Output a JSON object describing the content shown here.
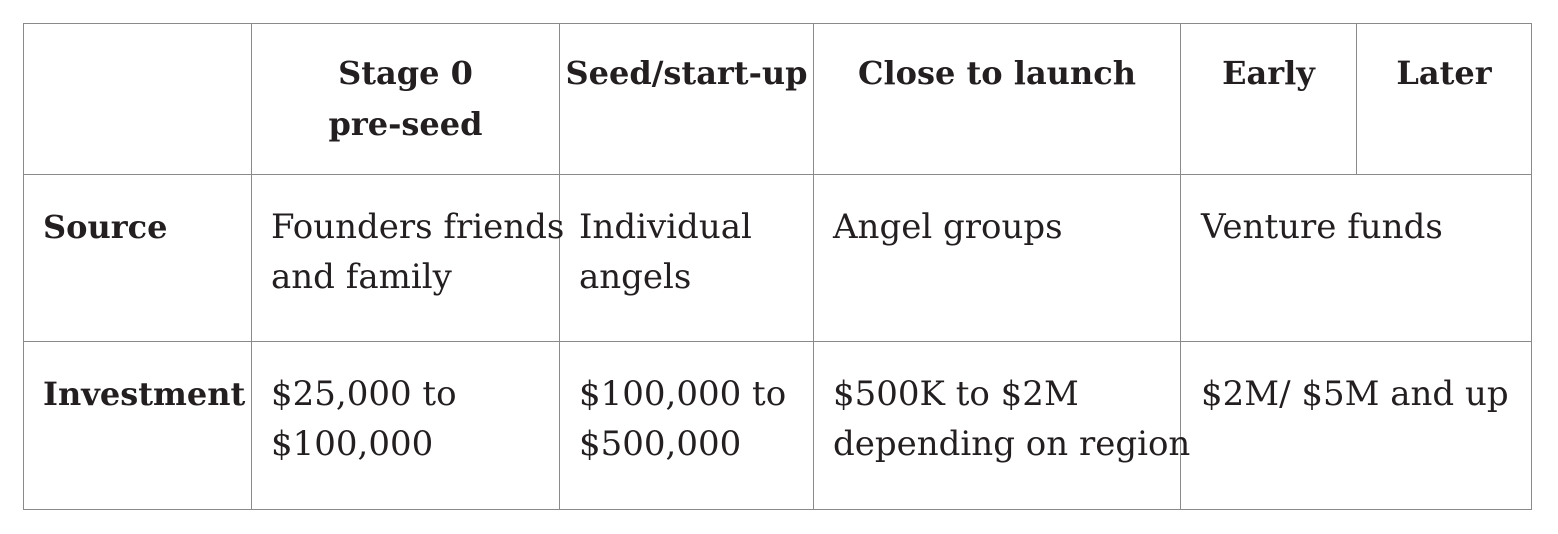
{
  "table": {
    "header": {
      "corner": "",
      "stage0_line1": "Stage 0",
      "stage0_line2": "pre-seed",
      "seed": "Seed/start-up",
      "close": "Close to launch",
      "early": "Early",
      "later": "Later"
    },
    "source": {
      "label": "Source",
      "stage0_line1": "Founders friends",
      "stage0_line2": "and family",
      "seed_line1": "Individual",
      "seed_line2": "angels",
      "close": "Angel groups",
      "venture": "Venture funds"
    },
    "investment": {
      "label": "Investment",
      "stage0_line1": "$25,000 to",
      "stage0_line2": "$100,000",
      "seed_line1": "$100,000 to",
      "seed_line2": "$500,000",
      "close_line1": "$500K to $2M",
      "close_line2": "depending on region",
      "venture": "$2M/ $5M and up"
    }
  }
}
